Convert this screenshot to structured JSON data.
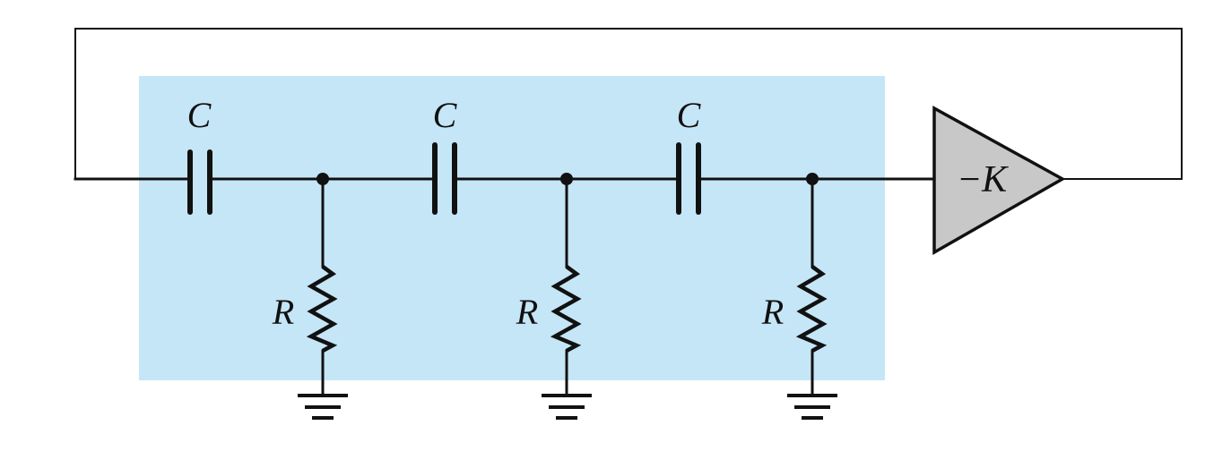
{
  "diagram": {
    "highlight_color": "#c5e6f7",
    "amplifier_fill": "#c8c8c8",
    "line_color": "#111111",
    "capacitors": [
      {
        "label": "C"
      },
      {
        "label": "C"
      },
      {
        "label": "C"
      }
    ],
    "resistors": [
      {
        "label": "R"
      },
      {
        "label": "R"
      },
      {
        "label": "R"
      }
    ],
    "amplifier": {
      "label": "−K"
    },
    "grounds": [
      {
        "icon": "ground-icon"
      },
      {
        "icon": "ground-icon"
      },
      {
        "icon": "ground-icon"
      }
    ]
  }
}
